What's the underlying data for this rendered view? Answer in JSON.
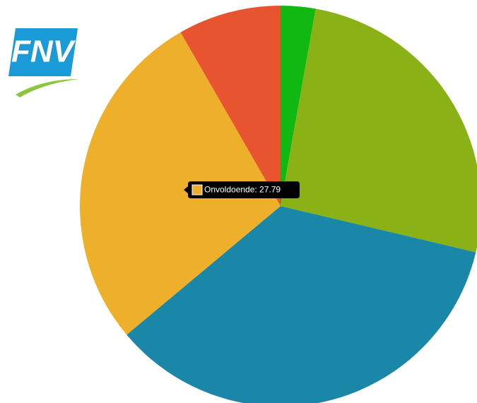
{
  "logo": "FNV",
  "chart_data": {
    "type": "pie",
    "categories": [
      null,
      null,
      null,
      "Onvoldoende",
      null
    ],
    "values": [
      2.8,
      25.9,
      35.2,
      27.79,
      8.3
    ],
    "colors": [
      "#12b812",
      "#8ab115",
      "#1a87a8",
      "#eeb02a",
      "#e95430"
    ],
    "tooltip": "Onvoldoende: 27.79"
  }
}
